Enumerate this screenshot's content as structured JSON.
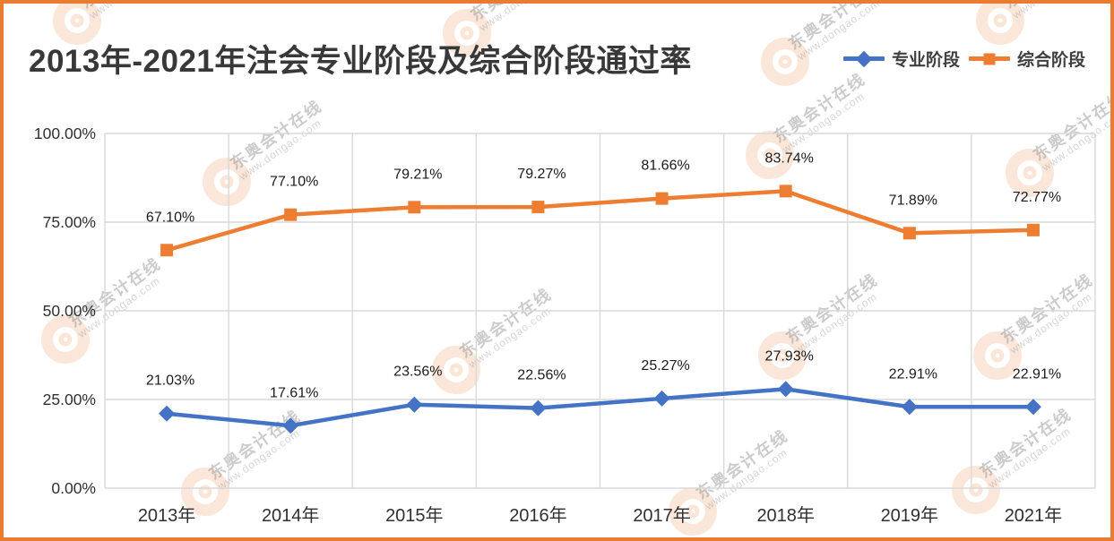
{
  "frame": {
    "border_color": "#E97C30",
    "background": "#FFFFFF"
  },
  "header": {
    "title": "2013年-2021年注会专业阶段及综合阶段通过率",
    "title_color": "#383838"
  },
  "legend": [
    {
      "label": "专业阶段",
      "color": "#4472C4",
      "marker": "diamond"
    },
    {
      "label": "综合阶段",
      "color": "#ED7D31",
      "marker": "square"
    }
  ],
  "watermark": {
    "line1": "东奥会计在线",
    "line2": "www.dongao.com",
    "logo_color": "#EA7C30"
  },
  "chart_data": {
    "type": "line",
    "title": "2013年-2021年注会专业阶段及综合阶段通过率",
    "categories": [
      "2013年",
      "2014年",
      "2015年",
      "2016年",
      "2017年",
      "2018年",
      "2019年",
      "2021年"
    ],
    "series": [
      {
        "name": "专业阶段",
        "color": "#4472C4",
        "marker": "diamond",
        "values": [
          21.03,
          17.61,
          23.56,
          22.56,
          25.27,
          27.93,
          22.91,
          22.91
        ],
        "labels": [
          "21.03%",
          "17.61%",
          "23.56%",
          "22.56%",
          "25.27%",
          "27.93%",
          "22.91%",
          "22.91%"
        ]
      },
      {
        "name": "综合阶段",
        "color": "#ED7D31",
        "marker": "square",
        "values": [
          67.1,
          77.1,
          79.21,
          79.27,
          81.66,
          83.74,
          71.89,
          72.77
        ],
        "labels": [
          "67.10%",
          "77.10%",
          "79.21%",
          "79.27%",
          "81.66%",
          "83.74%",
          "71.89%",
          "72.77%"
        ]
      }
    ],
    "y_axis": {
      "min": 0,
      "max": 100,
      "ticks": [
        {
          "label": "0.00%",
          "value": 0
        },
        {
          "label": "25.00%",
          "value": 25
        },
        {
          "label": "50.00%",
          "value": 50
        },
        {
          "label": "75.00%",
          "value": 75
        },
        {
          "label": "100.00%",
          "value": 100
        }
      ]
    },
    "grid": true,
    "legend_position": "top-right",
    "gridline_color": "#D9D9D9",
    "data_label_color": "#1A1A1A",
    "axis_label_color": "#303030"
  }
}
